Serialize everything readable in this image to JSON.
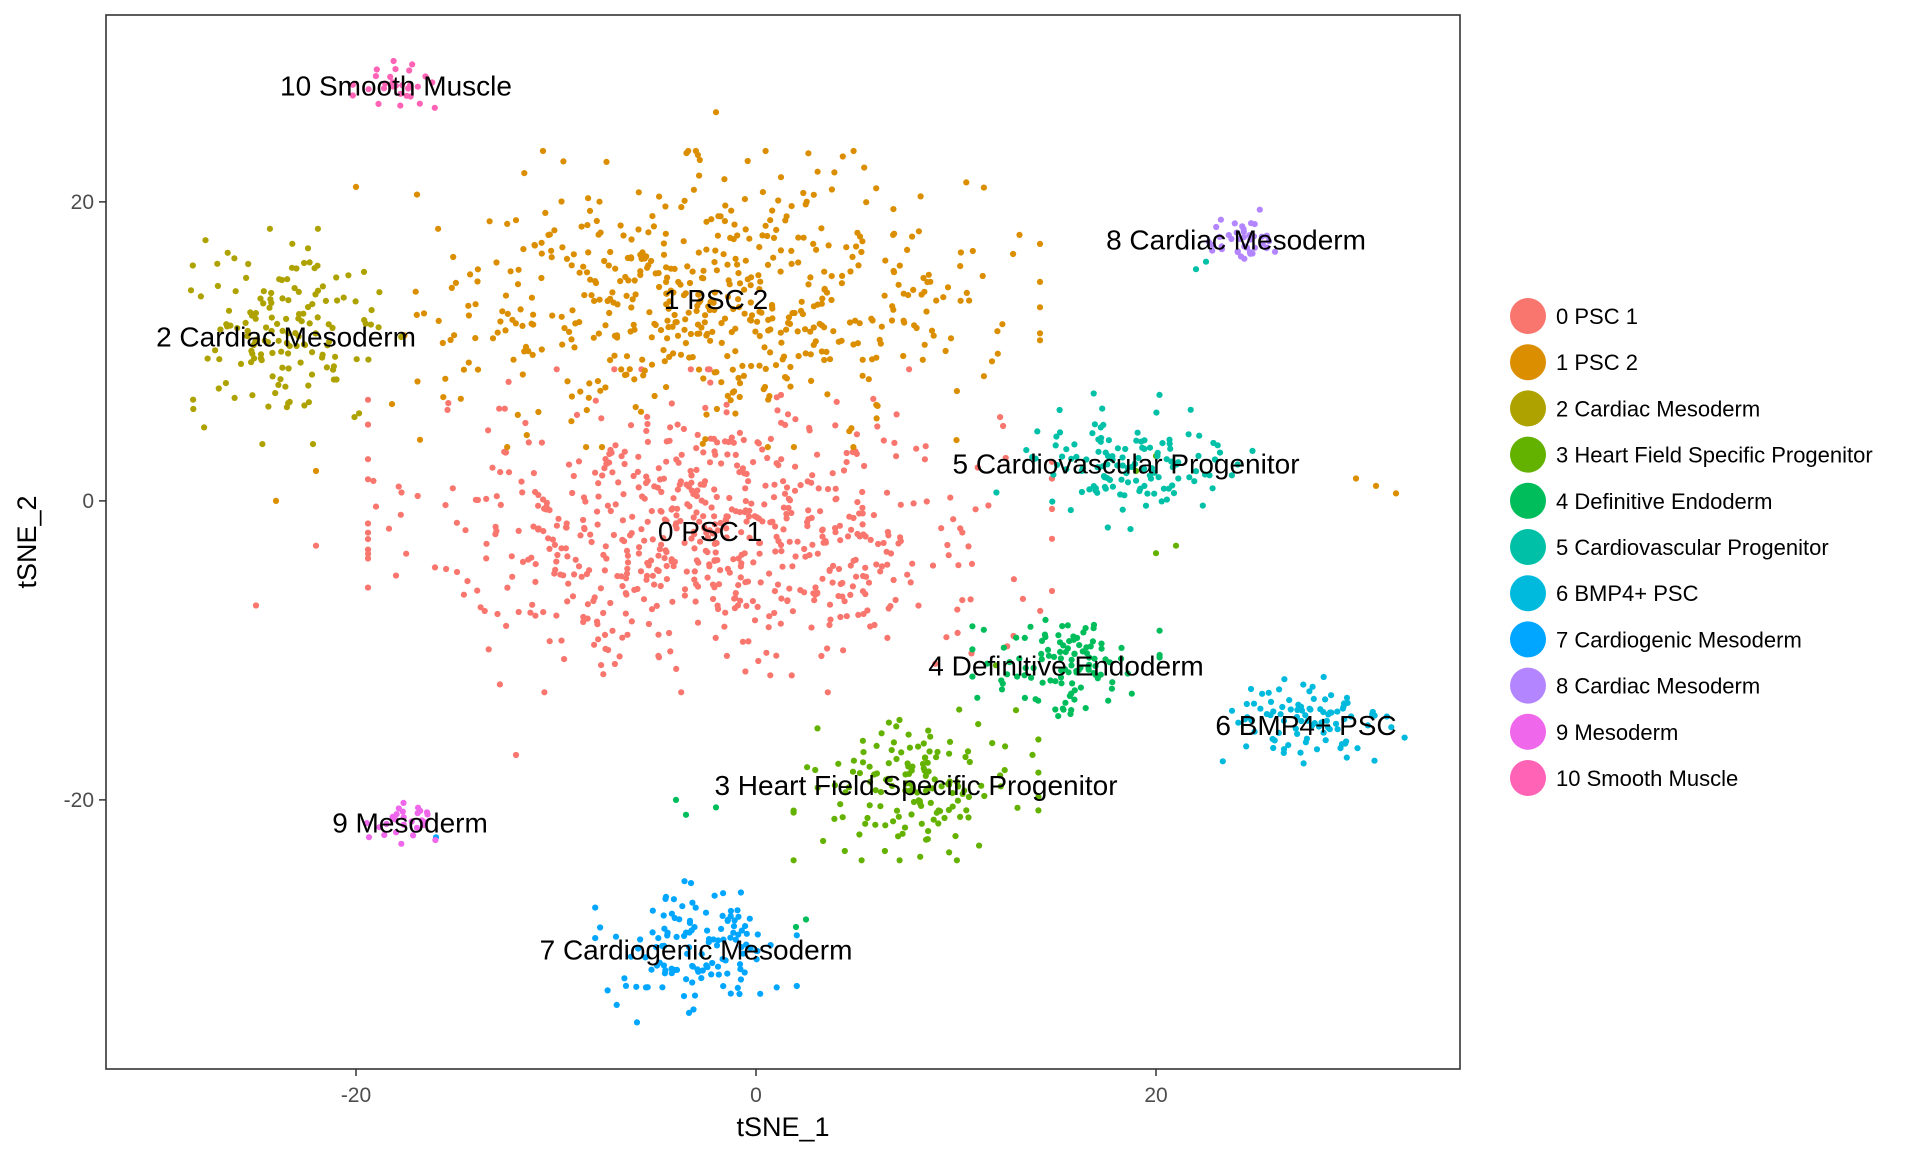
{
  "chart_data": {
    "type": "scatter",
    "xlabel": "tSNE_1",
    "ylabel": "tSNE_2",
    "xlim": [
      -32.5,
      35.2
    ],
    "ylim": [
      -38.0,
      32.5
    ],
    "xticks": [
      -20,
      0,
      20
    ],
    "yticks": [
      -20,
      0,
      20
    ],
    "grid": false,
    "legend_position": "right",
    "series": [
      {
        "name": "0 PSC 1",
        "color": "#F8766D",
        "label": "0 PSC 1",
        "center": [
          -2.3,
          -2.0
        ],
        "spread": [
          9.5,
          6.0
        ],
        "n": 700,
        "extra": [
          [
            -25,
            -7
          ],
          [
            -22,
            -3
          ],
          [
            -12,
            -17
          ],
          [
            -18,
            -5
          ]
        ]
      },
      {
        "name": "1 PSC 2",
        "color": "#DB8E00",
        "label": "1 PSC 2",
        "center": [
          -2.0,
          13.5
        ],
        "spread": [
          9.0,
          5.5
        ],
        "n": 560,
        "extra": [
          [
            31,
            1
          ],
          [
            32,
            0.5
          ],
          [
            30,
            1.5
          ],
          [
            -22,
            2
          ],
          [
            -24,
            0
          ],
          [
            -2,
            26
          ],
          [
            -20,
            21
          ]
        ]
      },
      {
        "name": "2 Cardiac Mesoderm",
        "color": "#AEA200",
        "label": "2 Cardiac Mesoderm",
        "center": [
          -23.5,
          11.0
        ],
        "spread": [
          3.2,
          4.0
        ],
        "n": 150,
        "extra": []
      },
      {
        "name": "3 Heart Field Specific Progenitor",
        "color": "#64B200",
        "label": "3 Heart Field Specific Progenitor",
        "center": [
          8.0,
          -19.0
        ],
        "spread": [
          3.4,
          2.8
        ],
        "n": 150,
        "extra": [
          [
            19,
            2
          ],
          [
            20,
            3
          ],
          [
            21,
            -3
          ],
          [
            20,
            -3.5
          ],
          [
            12,
            -11
          ],
          [
            13,
            -14
          ]
        ]
      },
      {
        "name": "4 Definitive Endoderm",
        "color": "#00BD5C",
        "label": "4 Definitive Endoderm",
        "center": [
          15.5,
          -11.0
        ],
        "spread": [
          2.6,
          2.2
        ],
        "n": 110,
        "extra": [
          [
            -4,
            -20
          ],
          [
            -3.5,
            -21
          ],
          [
            -2,
            -20.5
          ],
          [
            2.5,
            -28
          ],
          [
            2,
            -28.5
          ]
        ]
      },
      {
        "name": "5 Cardiovascular Progenitor",
        "color": "#00C1A7",
        "label": "5 Cardiovascular Progenitor",
        "center": [
          18.5,
          2.5
        ],
        "spread": [
          3.6,
          2.6
        ],
        "n": 130,
        "extra": [
          [
            22,
            15.5
          ],
          [
            22.5,
            16
          ]
        ]
      },
      {
        "name": "6 BMP4+ PSC",
        "color": "#00BADE",
        "label": "6 BMP4+ PSC",
        "center": [
          27.5,
          -15.0
        ],
        "spread": [
          2.8,
          2.0
        ],
        "n": 95,
        "extra": []
      },
      {
        "name": "7 Cardiogenic Mesoderm",
        "color": "#00A6FF",
        "label": "7 Cardiogenic Mesoderm",
        "center": [
          -3.0,
          -30.0
        ],
        "spread": [
          2.8,
          2.8
        ],
        "n": 130,
        "extra": [
          [
            -16,
            -22.5
          ]
        ]
      },
      {
        "name": "8 Cardiac Mesoderm",
        "color": "#B385FF",
        "label": "8 Cardiac Mesoderm",
        "center": [
          24.0,
          17.5
        ],
        "spread": [
          1.6,
          1.1
        ],
        "n": 40,
        "extra": []
      },
      {
        "name": "9 Mesoderm",
        "color": "#EF67EB",
        "label": "9 Mesoderm",
        "center": [
          -17.3,
          -21.5
        ],
        "spread": [
          1.2,
          0.8
        ],
        "n": 28,
        "extra": []
      },
      {
        "name": "10 Smooth Muscle",
        "color": "#FF63B6",
        "label": "10 Smooth Muscle",
        "center": [
          -18.0,
          27.8
        ],
        "spread": [
          1.2,
          0.9
        ],
        "n": 28,
        "extra": []
      }
    ]
  }
}
